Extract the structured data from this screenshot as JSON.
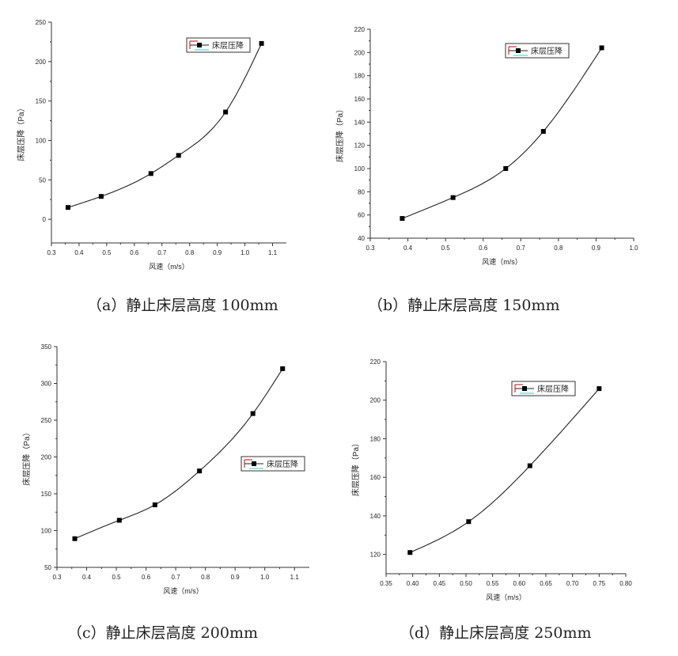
{
  "chart_data": [
    {
      "id": "a",
      "type": "line",
      "caption": "（a）静止床层高度 100mm",
      "xlabel": "风速（m/s）",
      "ylabel": "床层压降（Pa）",
      "xlim": [
        0.3,
        1.15
      ],
      "ylim": [
        -30,
        250
      ],
      "xticks": [
        0.3,
        0.4,
        0.5,
        0.6,
        0.7,
        0.8,
        0.9,
        1.0,
        1.1
      ],
      "xtick_labels": [
        "0.3",
        "0.4",
        "0.5",
        "0.6",
        "0.7",
        "0.8",
        "0.9",
        "1.0",
        "1.1"
      ],
      "yticks": [
        0,
        50,
        100,
        150,
        200,
        250
      ],
      "ytick_labels": [
        "0",
        "50",
        "100",
        "150",
        "200",
        "250"
      ],
      "legend": "床层压降",
      "series": [
        {
          "name": "床层压降",
          "x": [
            0.36,
            0.48,
            0.66,
            0.76,
            0.93,
            1.06
          ],
          "y": [
            15,
            29,
            58,
            81,
            136,
            223
          ]
        }
      ]
    },
    {
      "id": "b",
      "type": "line",
      "caption": "（b）静止床层高度 150mm",
      "xlabel": "风速（m/s）",
      "ylabel": "床层压降（Pa）",
      "xlim": [
        0.3,
        1.0
      ],
      "ylim": [
        40,
        220
      ],
      "xticks": [
        0.3,
        0.4,
        0.5,
        0.6,
        0.7,
        0.8,
        0.9,
        1.0
      ],
      "xtick_labels": [
        "0.3",
        "0.4",
        "0.5",
        "0.6",
        "0.7",
        "0.8",
        "0.9",
        "1.0"
      ],
      "yticks": [
        40,
        60,
        80,
        100,
        120,
        140,
        160,
        180,
        200,
        220
      ],
      "ytick_labels": [
        "40",
        "60",
        "80",
        "100",
        "120",
        "140",
        "160",
        "180",
        "200",
        "220"
      ],
      "legend": "床层压降",
      "series": [
        {
          "name": "床层压降",
          "x": [
            0.385,
            0.52,
            0.66,
            0.76,
            0.915
          ],
          "y": [
            57,
            75,
            100,
            132,
            204
          ]
        }
      ]
    },
    {
      "id": "c",
      "type": "line",
      "caption": "（c）静止床层高度 200mm",
      "xlabel": "风速（m/s）",
      "ylabel": "床层压降（Pa）",
      "xlim": [
        0.3,
        1.15
      ],
      "ylim": [
        50,
        350
      ],
      "xticks": [
        0.3,
        0.4,
        0.5,
        0.6,
        0.7,
        0.8,
        0.9,
        1.0,
        1.1
      ],
      "xtick_labels": [
        "0.3",
        "0.4",
        "0.5",
        "0.6",
        "0.7",
        "0.8",
        "0.9",
        "1.0",
        "1.1"
      ],
      "yticks": [
        50,
        100,
        150,
        200,
        250,
        300,
        350
      ],
      "ytick_labels": [
        "50",
        "100",
        "150",
        "200",
        "250",
        "300",
        "350"
      ],
      "legend": "床层压降",
      "series": [
        {
          "name": "床层压降",
          "x": [
            0.36,
            0.51,
            0.63,
            0.78,
            0.96,
            1.06
          ],
          "y": [
            89,
            114,
            135,
            181,
            259,
            320
          ]
        }
      ]
    },
    {
      "id": "d",
      "type": "line",
      "caption": "（d）静止床层高度 250mm",
      "xlabel": "风速（m/s）",
      "ylabel": "床层压降（Pa）",
      "xlim": [
        0.35,
        0.8
      ],
      "ylim": [
        110,
        220
      ],
      "xticks": [
        0.35,
        0.4,
        0.45,
        0.5,
        0.55,
        0.6,
        0.65,
        0.7,
        0.75,
        0.8
      ],
      "xtick_labels": [
        "0.35",
        "0.40",
        "0.45",
        "0.50",
        "0.55",
        "0.60",
        "0.65",
        "0.70",
        "0.75",
        "0.80"
      ],
      "yticks": [
        120,
        140,
        160,
        180,
        200,
        220
      ],
      "ytick_labels": [
        "120",
        "140",
        "160",
        "180",
        "200",
        "220"
      ],
      "legend": "床层压降",
      "series": [
        {
          "name": "床层压降",
          "x": [
            0.395,
            0.505,
            0.62,
            0.75
          ],
          "y": [
            121,
            137,
            166,
            206
          ]
        }
      ]
    }
  ]
}
